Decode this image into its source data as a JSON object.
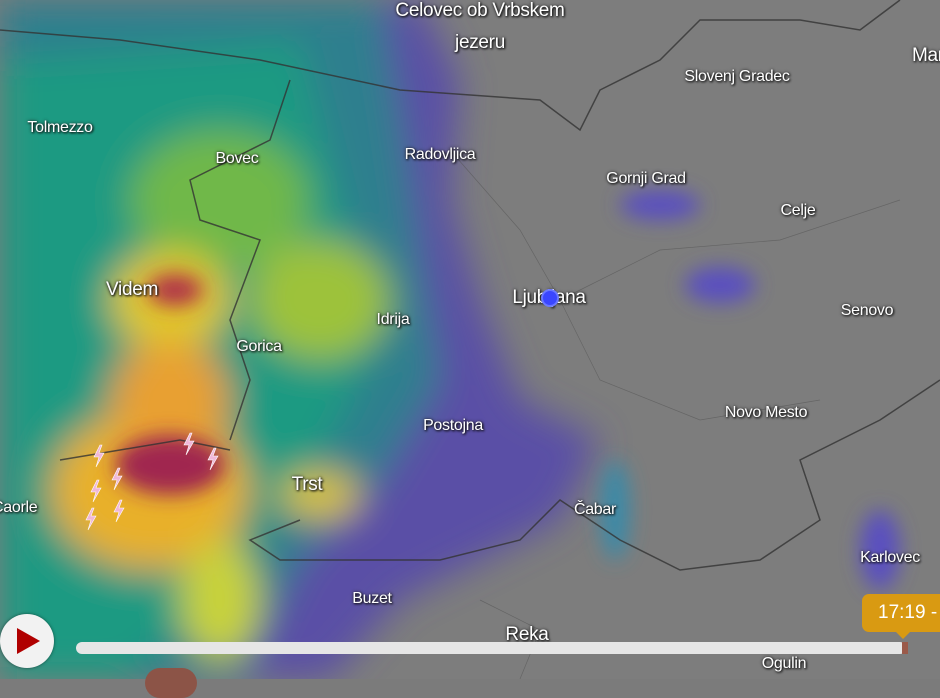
{
  "map": {
    "cities": [
      {
        "name": "Celovec ob Vrbskem",
        "big": true
      },
      {
        "name": "jezeru",
        "big": true
      },
      {
        "name": "Slovenj Gradec",
        "big": false
      },
      {
        "name": "Marib",
        "big": true
      },
      {
        "name": "Tolmezzo",
        "big": false
      },
      {
        "name": "Bovec",
        "big": false
      },
      {
        "name": "Radovljica",
        "big": false
      },
      {
        "name": "Gornji Grad",
        "big": false
      },
      {
        "name": "Celje",
        "big": false
      },
      {
        "name": "Videm",
        "big": true
      },
      {
        "name": "Ljubljana",
        "big": true
      },
      {
        "name": "Idrija",
        "big": false
      },
      {
        "name": "Senovo",
        "big": false
      },
      {
        "name": "Gorica",
        "big": false
      },
      {
        "name": "Novo Mesto",
        "big": false
      },
      {
        "name": "Postojna",
        "big": false
      },
      {
        "name": "Trst",
        "big": true
      },
      {
        "name": "Caorle",
        "big": false
      },
      {
        "name": "Čabar",
        "big": false
      },
      {
        "name": "Karlovec",
        "big": false
      },
      {
        "name": "Buzet",
        "big": false
      },
      {
        "name": "Reka",
        "big": true
      },
      {
        "name": "Ogulin",
        "big": false
      }
    ],
    "current_location_icon": "location-dot-icon",
    "layer": "radar precipitation",
    "colors": {
      "location": "#3a46ff",
      "timeline_badge": "#d99a12",
      "play_icon": "#b00000"
    }
  },
  "timeline": {
    "play_icon": "play-icon",
    "current_time": "17:19 -",
    "progress_percent": 99.5
  }
}
